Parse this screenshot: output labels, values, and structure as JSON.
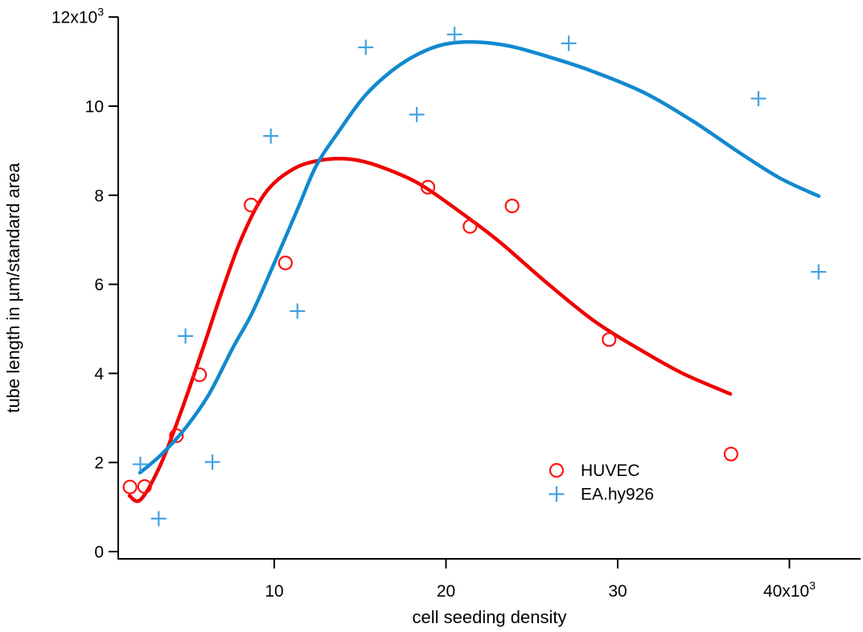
{
  "figure": {
    "background": "#ffffff",
    "axis_color": "#000000",
    "text_color": "#000000"
  },
  "chart_data": {
    "type": "scatter",
    "title": "",
    "xlabel": "cell seeding density",
    "ylabel": "tube length in µm/standard area",
    "xlim": [
      900,
      44200
    ],
    "ylim": [
      0,
      12000
    ],
    "grid": false,
    "legend_position": "inside-bottom-right",
    "x_ticks": [
      {
        "value": 10000,
        "label": "10"
      },
      {
        "value": 20000,
        "label": "20"
      },
      {
        "value": 30000,
        "label": "30"
      },
      {
        "value": 40000,
        "label": "40x10",
        "sup": "3"
      }
    ],
    "y_ticks": [
      {
        "value": 0,
        "label": "0"
      },
      {
        "value": 2000,
        "label": "2"
      },
      {
        "value": 4000,
        "label": "4"
      },
      {
        "value": 6000,
        "label": "6"
      },
      {
        "value": 8000,
        "label": "8"
      },
      {
        "value": 10000,
        "label": "10"
      },
      {
        "value": 12000,
        "label": "12x10",
        "sup": "3"
      }
    ],
    "series": [
      {
        "name": "HUVEC",
        "marker": "circle",
        "marker_color": "#ff1111",
        "line_color": "#ee0000",
        "points": [
          [
            1600,
            1450
          ],
          [
            2450,
            1460
          ],
          [
            4300,
            2600
          ],
          [
            5650,
            3970
          ],
          [
            8650,
            7780
          ],
          [
            10650,
            6480
          ],
          [
            18950,
            8180
          ],
          [
            21400,
            7300
          ],
          [
            23850,
            7760
          ],
          [
            29500,
            4760
          ],
          [
            36600,
            2190
          ]
        ],
        "fit_curve": [
          [
            1570,
            1250
          ],
          [
            2230,
            1170
          ],
          [
            3400,
            1970
          ],
          [
            4570,
            3140
          ],
          [
            5740,
            4440
          ],
          [
            6910,
            5790
          ],
          [
            8080,
            7020
          ],
          [
            9480,
            8050
          ],
          [
            11120,
            8590
          ],
          [
            12760,
            8790
          ],
          [
            14400,
            8810
          ],
          [
            16040,
            8660
          ],
          [
            18380,
            8270
          ],
          [
            20730,
            7650
          ],
          [
            23070,
            6970
          ],
          [
            25880,
            6030
          ],
          [
            28690,
            5160
          ],
          [
            31500,
            4490
          ],
          [
            33840,
            3990
          ],
          [
            36560,
            3540
          ]
        ]
      },
      {
        "name": "EA.hy926",
        "marker": "plus",
        "marker_color": "#43a2e0",
        "line_color": "#1189cf",
        "points": [
          [
            2200,
            1960
          ],
          [
            3270,
            740
          ],
          [
            4830,
            4840
          ],
          [
            6400,
            2010
          ],
          [
            9800,
            9330
          ],
          [
            11350,
            5400
          ],
          [
            15330,
            11320
          ],
          [
            18300,
            9810
          ],
          [
            20500,
            11610
          ],
          [
            27150,
            11410
          ],
          [
            38200,
            10170
          ],
          [
            41700,
            6280
          ]
        ],
        "fit_curve": [
          [
            2180,
            1770
          ],
          [
            3400,
            2170
          ],
          [
            4800,
            2760
          ],
          [
            6210,
            3540
          ],
          [
            7610,
            4590
          ],
          [
            8690,
            5340
          ],
          [
            9950,
            6430
          ],
          [
            11360,
            7690
          ],
          [
            12440,
            8660
          ],
          [
            13700,
            9400
          ],
          [
            15250,
            10220
          ],
          [
            16840,
            10790
          ],
          [
            18380,
            11170
          ],
          [
            19930,
            11390
          ],
          [
            21660,
            11440
          ],
          [
            23680,
            11350
          ],
          [
            26210,
            11080
          ],
          [
            28550,
            10780
          ],
          [
            31500,
            10310
          ],
          [
            34310,
            9680
          ],
          [
            37120,
            8950
          ],
          [
            39460,
            8380
          ],
          [
            41710,
            7980
          ]
        ]
      }
    ],
    "legend": [
      {
        "label": "HUVEC",
        "marker": "circle",
        "color": "#ff1111"
      },
      {
        "label": "EA.hy926",
        "marker": "plus",
        "color": "#43a2e0"
      }
    ]
  }
}
